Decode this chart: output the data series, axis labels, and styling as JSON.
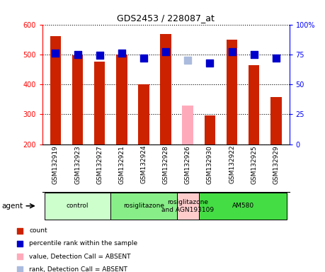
{
  "title": "GDS2453 / 228087_at",
  "samples": [
    "GSM132919",
    "GSM132923",
    "GSM132927",
    "GSM132921",
    "GSM132924",
    "GSM132928",
    "GSM132926",
    "GSM132930",
    "GSM132922",
    "GSM132925",
    "GSM132929"
  ],
  "bar_values": [
    562,
    498,
    475,
    500,
    400,
    568,
    328,
    296,
    549,
    465,
    358
  ],
  "bar_colors": [
    "#cc2200",
    "#cc2200",
    "#cc2200",
    "#cc2200",
    "#cc2200",
    "#cc2200",
    "#ffaabb",
    "#cc2200",
    "#cc2200",
    "#cc2200",
    "#cc2200"
  ],
  "rank_values": [
    76,
    75,
    74,
    76,
    72,
    77,
    70,
    68,
    77,
    75,
    72
  ],
  "rank_colors": [
    "#0000cc",
    "#0000cc",
    "#0000cc",
    "#0000cc",
    "#0000cc",
    "#0000cc",
    "#aabbdd",
    "#0000cc",
    "#0000cc",
    "#0000cc",
    "#0000cc"
  ],
  "ylim_left": [
    200,
    600
  ],
  "ylim_right": [
    0,
    100
  ],
  "yticks_left": [
    200,
    300,
    400,
    500,
    600
  ],
  "yticks_right": [
    0,
    25,
    50,
    75,
    100
  ],
  "ytick_labels_right": [
    "0",
    "25",
    "50",
    "75",
    "100%"
  ],
  "groups": [
    {
      "label": "control",
      "start": 0,
      "end": 3,
      "color": "#ccffcc"
    },
    {
      "label": "rosiglitazone",
      "start": 3,
      "end": 6,
      "color": "#88ee88"
    },
    {
      "label": "rosiglitazone\nand AGN193109",
      "start": 6,
      "end": 7,
      "color": "#ffcccc"
    },
    {
      "label": "AM580",
      "start": 7,
      "end": 11,
      "color": "#44dd44"
    }
  ],
  "agent_label": "agent",
  "legend_items": [
    {
      "color": "#cc2200",
      "label": "count"
    },
    {
      "color": "#0000cc",
      "label": "percentile rank within the sample"
    },
    {
      "color": "#ffaabb",
      "label": "value, Detection Call = ABSENT"
    },
    {
      "color": "#aabbdd",
      "label": "rank, Detection Call = ABSENT"
    }
  ],
  "bar_width": 0.5,
  "dot_size": 50
}
